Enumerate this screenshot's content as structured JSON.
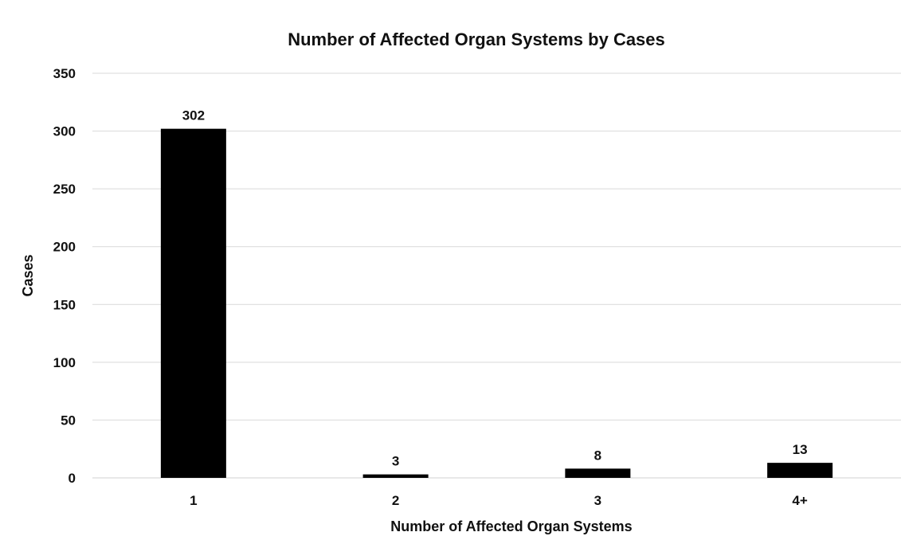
{
  "chart_data": {
    "type": "bar",
    "title": "Number of Affected Organ Systems by Cases",
    "xlabel": "Number of Affected Organ Systems",
    "ylabel": "Cases",
    "categories": [
      "1",
      "2",
      "3",
      "4+"
    ],
    "values": [
      302,
      3,
      8,
      13
    ],
    "data_labels": [
      "302",
      "3",
      "8",
      "13"
    ],
    "ylim": [
      0,
      350
    ],
    "yticks": [
      0,
      50,
      100,
      150,
      200,
      250,
      300,
      350
    ],
    "grid": true,
    "legend": "none",
    "bar_color": "#000000"
  }
}
